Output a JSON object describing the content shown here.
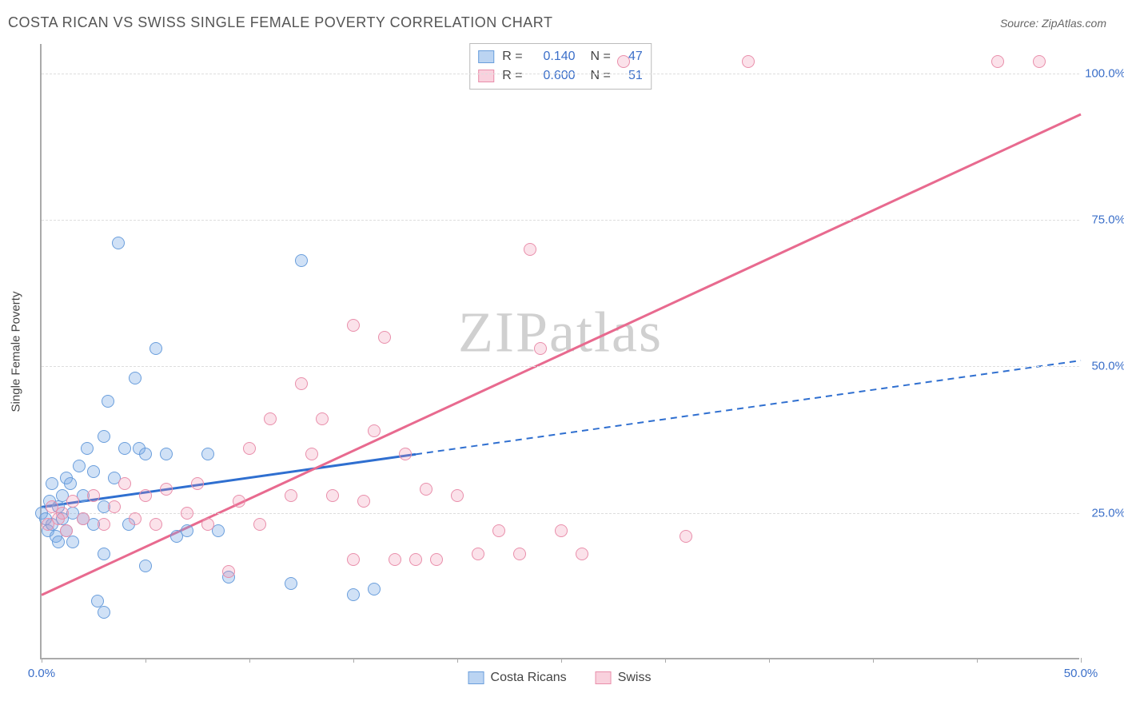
{
  "header": {
    "title": "COSTA RICAN VS SWISS SINGLE FEMALE POVERTY CORRELATION CHART",
    "source": "Source: ZipAtlas.com"
  },
  "watermark": {
    "zip": "ZIP",
    "atlas": "atlas"
  },
  "chart": {
    "type": "scatter",
    "y_axis_label": "Single Female Poverty",
    "xlim": [
      0,
      50
    ],
    "ylim": [
      0,
      105
    ],
    "x_ticks": [
      0,
      5,
      10,
      15,
      20,
      25,
      30,
      35,
      40,
      45,
      50
    ],
    "x_tick_labels": {
      "0": "0.0%",
      "50": "50.0%"
    },
    "y_gridlines": [
      25,
      50,
      75,
      100
    ],
    "y_tick_labels": {
      "25": "25.0%",
      "50": "50.0%",
      "75": "75.0%",
      "100": "100.0%"
    },
    "background_color": "#ffffff",
    "grid_color": "#dddddd",
    "axis_color": "#aaaaaa",
    "label_color": "#3b6fc9",
    "marker_radius": 8,
    "series": [
      {
        "id": "costa_ricans",
        "label": "Costa Ricans",
        "fill": "rgba(120,170,230,0.35)",
        "stroke": "#6a9edc",
        "R": "0.140",
        "N": "47",
        "trend": {
          "x1": 0,
          "y1": 26,
          "x2": 50,
          "y2": 51,
          "solid_until_x": 18,
          "color": "#2f6fd0",
          "width": 3
        },
        "points": [
          [
            0,
            25
          ],
          [
            0.2,
            24
          ],
          [
            0.3,
            22
          ],
          [
            0.4,
            27
          ],
          [
            0.5,
            23
          ],
          [
            0.5,
            30
          ],
          [
            0.7,
            21
          ],
          [
            0.8,
            26
          ],
          [
            0.8,
            20
          ],
          [
            1,
            28
          ],
          [
            1,
            24
          ],
          [
            1.2,
            31
          ],
          [
            1.2,
            22
          ],
          [
            1.4,
            30
          ],
          [
            1.5,
            25
          ],
          [
            1.5,
            20
          ],
          [
            1.8,
            33
          ],
          [
            2,
            28
          ],
          [
            2,
            24
          ],
          [
            2.2,
            36
          ],
          [
            2.5,
            32
          ],
          [
            2.5,
            23
          ],
          [
            2.7,
            10
          ],
          [
            3,
            38
          ],
          [
            3,
            26
          ],
          [
            3,
            18
          ],
          [
            3,
            8
          ],
          [
            3.2,
            44
          ],
          [
            3.5,
            31
          ],
          [
            3.7,
            71
          ],
          [
            4,
            36
          ],
          [
            4.2,
            23
          ],
          [
            4.5,
            48
          ],
          [
            4.7,
            36
          ],
          [
            5,
            35
          ],
          [
            5,
            16
          ],
          [
            5.5,
            53
          ],
          [
            6,
            35
          ],
          [
            6.5,
            21
          ],
          [
            7,
            22
          ],
          [
            8,
            35
          ],
          [
            8.5,
            22
          ],
          [
            9,
            14
          ],
          [
            12,
            13
          ],
          [
            12.5,
            68
          ],
          [
            15,
            11
          ],
          [
            16,
            12
          ]
        ]
      },
      {
        "id": "swiss",
        "label": "Swiss",
        "fill": "rgba(240,140,170,0.25)",
        "stroke": "#e98fab",
        "R": "0.600",
        "N": "51",
        "trend": {
          "x1": 0,
          "y1": 11,
          "x2": 50,
          "y2": 93,
          "solid_until_x": 50,
          "color": "#e86a8f",
          "width": 3
        },
        "points": [
          [
            0.3,
            23
          ],
          [
            0.5,
            26
          ],
          [
            0.8,
            24
          ],
          [
            1,
            25
          ],
          [
            1.2,
            22
          ],
          [
            1.5,
            27
          ],
          [
            2,
            24
          ],
          [
            2.5,
            28
          ],
          [
            3,
            23
          ],
          [
            3.5,
            26
          ],
          [
            4,
            30
          ],
          [
            4.5,
            24
          ],
          [
            5,
            28
          ],
          [
            5.5,
            23
          ],
          [
            6,
            29
          ],
          [
            7,
            25
          ],
          [
            7.5,
            30
          ],
          [
            8,
            23
          ],
          [
            9,
            15
          ],
          [
            9.5,
            27
          ],
          [
            10,
            36
          ],
          [
            10.5,
            23
          ],
          [
            11,
            41
          ],
          [
            12,
            28
          ],
          [
            12.5,
            47
          ],
          [
            13,
            35
          ],
          [
            13.5,
            41
          ],
          [
            14,
            28
          ],
          [
            15,
            17
          ],
          [
            15,
            57
          ],
          [
            15.5,
            27
          ],
          [
            16,
            39
          ],
          [
            16.5,
            55
          ],
          [
            17,
            17
          ],
          [
            17.5,
            35
          ],
          [
            18,
            17
          ],
          [
            18.5,
            29
          ],
          [
            19,
            17
          ],
          [
            20,
            28
          ],
          [
            21,
            18
          ],
          [
            22,
            22
          ],
          [
            23,
            18
          ],
          [
            23.5,
            70
          ],
          [
            24,
            53
          ],
          [
            25,
            22
          ],
          [
            26,
            18
          ],
          [
            28,
            102
          ],
          [
            31,
            21
          ],
          [
            34,
            102
          ],
          [
            46,
            102
          ],
          [
            48,
            102
          ]
        ]
      }
    ]
  },
  "stats_box": {
    "r_label": "R",
    "n_label": "N",
    "equals": "="
  },
  "legend": {
    "items": [
      "costa_ricans",
      "swiss"
    ]
  }
}
